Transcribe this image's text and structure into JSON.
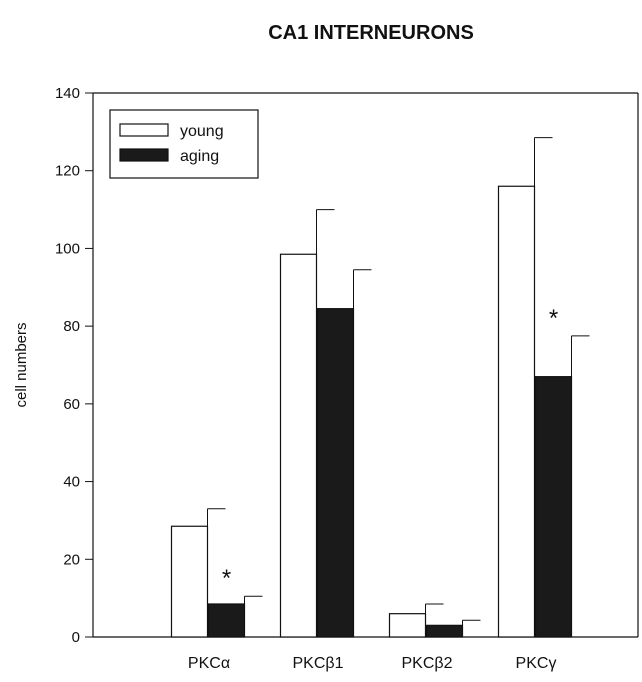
{
  "chart_data": {
    "type": "bar",
    "title": "CA1  INTERNEURONS",
    "xlabel": "",
    "ylabel": "cell numbers",
    "ylim": [
      0,
      140
    ],
    "yticks": [
      0,
      20,
      40,
      60,
      80,
      100,
      120,
      140
    ],
    "categories": [
      "PKCα",
      "PKCβ1",
      "PKCβ2",
      "PKCγ"
    ],
    "series": [
      {
        "name": "young",
        "color": "#ffffff",
        "values": [
          28.5,
          98.5,
          6,
          116
        ],
        "errors": [
          4.5,
          11.5,
          2.5,
          12.5
        ]
      },
      {
        "name": "aging",
        "color": "#1a1a1a",
        "values": [
          8.5,
          84.5,
          3,
          67
        ],
        "errors": [
          2,
          10,
          1.3,
          10.5
        ]
      }
    ],
    "significance": [
      {
        "category": "PKCα",
        "series": "aging",
        "label": "*"
      },
      {
        "category": "PKCγ",
        "series": "aging",
        "label": "*"
      }
    ],
    "legend": "top-left",
    "grid": false
  }
}
